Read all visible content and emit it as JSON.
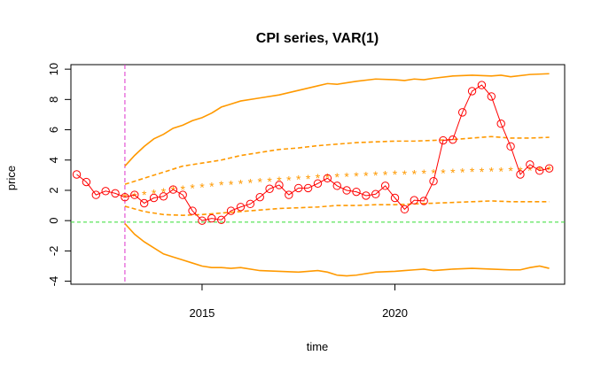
{
  "chart_data": {
    "type": "line",
    "title": "CPI series, VAR(1)",
    "xlabel": "time",
    "ylabel": "price",
    "xlim": [
      2011.6,
      2024.4
    ],
    "ylim": [
      -4.2,
      10.3
    ],
    "x_ticks": [
      2015,
      2020
    ],
    "x_tick_labels": [
      "2015",
      "2020"
    ],
    "y_ticks": [
      -4,
      -2,
      0,
      2,
      4,
      6,
      8,
      10
    ],
    "y_tick_labels": [
      "-4",
      "-2",
      "0",
      "2",
      "4",
      "6",
      "8",
      "10"
    ],
    "grid": false,
    "legend": "none",
    "colors": {
      "observed": "#ff0000",
      "band": "#ff9900",
      "reference_line": "#33dd33",
      "vertical_marker": "#dd33cc"
    },
    "vertical_marker_x": 2013.0,
    "horizontal_reference_y": -0.1,
    "series": [
      {
        "role": "observed",
        "style": "red line with hollow circle markers",
        "x": [
          2011.75,
          2012.0,
          2012.25,
          2012.5,
          2012.75,
          2013.0,
          2013.25,
          2013.5,
          2013.75,
          2014.0,
          2014.25,
          2014.5,
          2014.75,
          2015.0,
          2015.25,
          2015.5,
          2015.75,
          2016.0,
          2016.25,
          2016.5,
          2016.75,
          2017.0,
          2017.25,
          2017.5,
          2017.75,
          2018.0,
          2018.25,
          2018.5,
          2018.75,
          2019.0,
          2019.25,
          2019.5,
          2019.75,
          2020.0,
          2020.25,
          2020.5,
          2020.75,
          2021.0,
          2021.25,
          2021.5,
          2021.75,
          2022.0,
          2022.25,
          2022.5,
          2022.75,
          2023.0,
          2023.25,
          2023.5,
          2023.75,
          2024.0
        ],
        "y": [
          3.05,
          2.55,
          1.7,
          1.95,
          1.8,
          1.55,
          1.7,
          1.15,
          1.5,
          1.6,
          2.05,
          1.7,
          0.65,
          0.0,
          0.15,
          0.05,
          0.65,
          0.9,
          1.1,
          1.55,
          2.1,
          2.35,
          1.7,
          2.15,
          2.15,
          2.45,
          2.8,
          2.3,
          2.0,
          1.9,
          1.65,
          1.75,
          2.3,
          1.5,
          0.75,
          1.35,
          1.3,
          2.6,
          5.3,
          5.35,
          7.15,
          8.55,
          8.95,
          8.2,
          6.4,
          4.9,
          3.05,
          3.7,
          3.3,
          3.45
        ]
      },
      {
        "role": "forecast",
        "style": "orange asterisks",
        "x": [
          2013.0,
          2013.25,
          2013.5,
          2013.75,
          2014.0,
          2014.25,
          2014.5,
          2014.75,
          2015.0,
          2015.25,
          2015.5,
          2015.75,
          2016.0,
          2016.25,
          2016.5,
          2016.75,
          2017.0,
          2017.25,
          2017.5,
          2017.75,
          2018.0,
          2018.25,
          2018.5,
          2018.75,
          2019.0,
          2019.25,
          2019.5,
          2019.75,
          2020.0,
          2020.25,
          2020.5,
          2020.75,
          2021.0,
          2021.25,
          2021.5,
          2021.75,
          2022.0,
          2022.25,
          2022.5,
          2022.75,
          2023.0,
          2023.25,
          2023.5,
          2023.75,
          2024.0
        ],
        "y": [
          1.6,
          1.65,
          1.75,
          1.85,
          1.95,
          2.05,
          2.12,
          2.2,
          2.27,
          2.33,
          2.4,
          2.45,
          2.5,
          2.55,
          2.6,
          2.65,
          2.7,
          2.74,
          2.78,
          2.82,
          2.86,
          2.9,
          2.93,
          2.96,
          2.99,
          3.02,
          3.05,
          3.08,
          3.1,
          3.12,
          3.15,
          3.17,
          3.19,
          3.21,
          3.23,
          3.25,
          3.27,
          3.29,
          3.3,
          3.32,
          3.33,
          3.35,
          3.36,
          3.38,
          3.4
        ]
      },
      {
        "role": "inner-upper band",
        "style": "orange dashed",
        "x": [
          2013.0,
          2013.5,
          2014.0,
          2014.5,
          2015.0,
          2015.5,
          2016.0,
          2016.5,
          2017.0,
          2017.5,
          2018.0,
          2018.5,
          2019.0,
          2019.5,
          2020.0,
          2020.5,
          2021.0,
          2021.5,
          2022.0,
          2022.5,
          2023.0,
          2023.5,
          2024.0
        ],
        "y": [
          2.4,
          2.8,
          3.2,
          3.6,
          3.8,
          4.0,
          4.3,
          4.5,
          4.7,
          4.8,
          4.95,
          5.05,
          5.15,
          5.2,
          5.25,
          5.25,
          5.3,
          5.35,
          5.45,
          5.55,
          5.45,
          5.45,
          5.5
        ]
      },
      {
        "role": "inner-lower band",
        "style": "orange dashed",
        "x": [
          2013.0,
          2013.5,
          2014.0,
          2014.5,
          2015.0,
          2015.5,
          2016.0,
          2016.5,
          2017.0,
          2017.5,
          2018.0,
          2018.5,
          2019.0,
          2019.5,
          2020.0,
          2020.5,
          2021.0,
          2021.5,
          2022.0,
          2022.5,
          2023.0,
          2023.5,
          2024.0
        ],
        "y": [
          0.95,
          0.6,
          0.4,
          0.35,
          0.4,
          0.5,
          0.6,
          0.7,
          0.8,
          0.85,
          0.9,
          1.0,
          1.0,
          1.05,
          1.05,
          1.1,
          1.15,
          1.2,
          1.25,
          1.3,
          1.25,
          1.25,
          1.25
        ]
      },
      {
        "role": "outer-upper band",
        "style": "orange solid",
        "x": [
          2013.0,
          2013.25,
          2013.5,
          2013.75,
          2014.0,
          2014.25,
          2014.5,
          2014.75,
          2015.0,
          2015.25,
          2015.5,
          2015.75,
          2016.0,
          2016.5,
          2017.0,
          2017.5,
          2018.0,
          2018.25,
          2018.5,
          2019.0,
          2019.5,
          2020.0,
          2020.25,
          2020.5,
          2020.75,
          2021.0,
          2021.5,
          2022.0,
          2022.5,
          2022.75,
          2023.0,
          2023.5,
          2024.0
        ],
        "y": [
          3.6,
          4.3,
          4.9,
          5.4,
          5.7,
          6.1,
          6.3,
          6.6,
          6.8,
          7.1,
          7.5,
          7.7,
          7.9,
          8.1,
          8.3,
          8.6,
          8.9,
          9.05,
          9.0,
          9.2,
          9.35,
          9.3,
          9.25,
          9.35,
          9.3,
          9.4,
          9.55,
          9.6,
          9.55,
          9.6,
          9.5,
          9.65,
          9.7
        ]
      },
      {
        "role": "outer-lower band",
        "style": "orange solid",
        "x": [
          2013.0,
          2013.25,
          2013.5,
          2013.75,
          2014.0,
          2014.25,
          2014.5,
          2014.75,
          2015.0,
          2015.25,
          2015.5,
          2015.75,
          2016.0,
          2016.5,
          2017.0,
          2017.5,
          2018.0,
          2018.25,
          2018.5,
          2018.75,
          2019.0,
          2019.5,
          2020.0,
          2020.25,
          2020.5,
          2020.75,
          2021.0,
          2021.5,
          2022.0,
          2022.5,
          2023.0,
          2023.25,
          2023.5,
          2023.75,
          2024.0
        ],
        "y": [
          -0.2,
          -0.9,
          -1.4,
          -1.8,
          -2.2,
          -2.4,
          -2.6,
          -2.8,
          -3.0,
          -3.1,
          -3.1,
          -3.15,
          -3.1,
          -3.3,
          -3.35,
          -3.4,
          -3.3,
          -3.4,
          -3.6,
          -3.65,
          -3.6,
          -3.4,
          -3.35,
          -3.3,
          -3.25,
          -3.2,
          -3.3,
          -3.2,
          -3.15,
          -3.2,
          -3.25,
          -3.25,
          -3.1,
          -3.0,
          -3.15
        ]
      }
    ]
  }
}
